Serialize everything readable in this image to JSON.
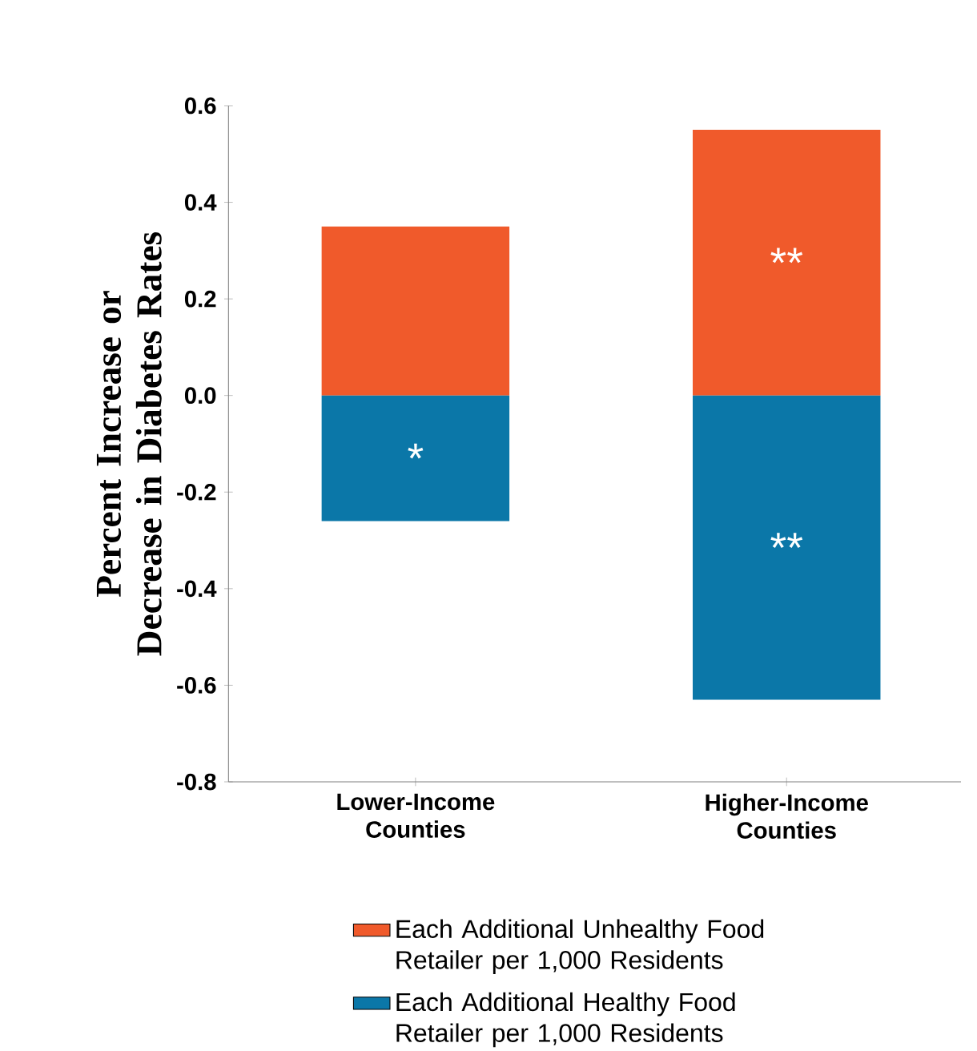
{
  "chart_data": {
    "type": "bar",
    "ylabel": "Percent Increase or Decrease in Diabetes Rates",
    "categories": [
      "Lower-Income Counties",
      "Higher-Income Counties"
    ],
    "series": [
      {
        "name": "Each Additional Unhealthy Food Retailer per 1,000 Residents",
        "color": "#f05a2b",
        "values": [
          0.35,
          0.55
        ]
      },
      {
        "name": "Each Additional Healthy Food Retailer per 1,000 Residents",
        "color": "#0b77a8",
        "values": [
          -0.26,
          -0.63
        ]
      }
    ],
    "ylim": [
      -0.8,
      0.6
    ],
    "yticks": [
      -0.8,
      -0.6,
      -0.4,
      -0.2,
      {
        "value": 0,
        "label": "0.0"
      },
      0.2,
      0.4,
      0.6
    ],
    "annotations": [
      "*",
      "**",
      "**"
    ],
    "stacked": true,
    "legend": "bottom",
    "grid": false
  }
}
